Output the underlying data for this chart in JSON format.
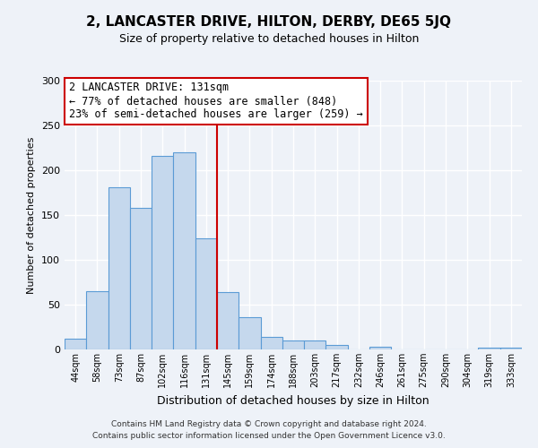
{
  "title": "2, LANCASTER DRIVE, HILTON, DERBY, DE65 5JQ",
  "subtitle": "Size of property relative to detached houses in Hilton",
  "xlabel": "Distribution of detached houses by size in Hilton",
  "ylabel": "Number of detached properties",
  "bar_labels": [
    "44sqm",
    "58sqm",
    "73sqm",
    "87sqm",
    "102sqm",
    "116sqm",
    "131sqm",
    "145sqm",
    "159sqm",
    "174sqm",
    "188sqm",
    "203sqm",
    "217sqm",
    "232sqm",
    "246sqm",
    "261sqm",
    "275sqm",
    "290sqm",
    "304sqm",
    "319sqm",
    "333sqm"
  ],
  "bar_heights": [
    12,
    65,
    181,
    158,
    216,
    220,
    124,
    64,
    36,
    14,
    10,
    10,
    5,
    0,
    3,
    0,
    0,
    0,
    0,
    2,
    2
  ],
  "bar_color": "#c5d8ed",
  "bar_edge_color": "#5b9bd5",
  "highlight_index": 6,
  "highlight_line_color": "#cc0000",
  "annotation_title": "2 LANCASTER DRIVE: 131sqm",
  "annotation_line1": "← 77% of detached houses are smaller (848)",
  "annotation_line2": "23% of semi-detached houses are larger (259) →",
  "annotation_box_color": "#ffffff",
  "annotation_box_edge": "#cc0000",
  "ylim": [
    0,
    300
  ],
  "yticks": [
    0,
    50,
    100,
    150,
    200,
    250,
    300
  ],
  "footer1": "Contains HM Land Registry data © Crown copyright and database right 2024.",
  "footer2": "Contains public sector information licensed under the Open Government Licence v3.0.",
  "background_color": "#eef2f8"
}
